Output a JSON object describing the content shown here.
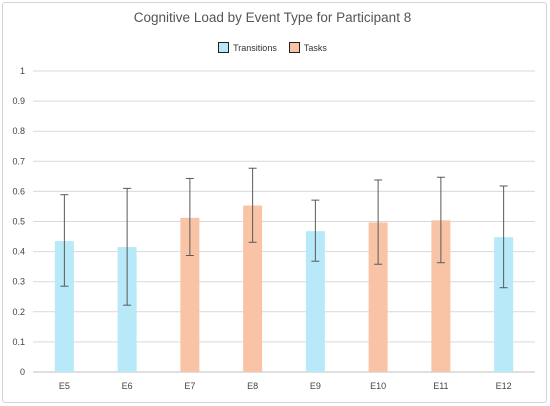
{
  "chart_data": {
    "type": "bar",
    "title": "Cognitive Load by Event Type for Participant 8",
    "xlabel": "",
    "ylabel": "",
    "ylim": [
      0,
      1
    ],
    "yticks": [
      "0",
      "0.1",
      "0.2",
      "0.3",
      "0.4",
      "0.5",
      "0.6",
      "0.7",
      "0.8",
      "0.9",
      "1"
    ],
    "grid": "horizontal",
    "legend_position": "top",
    "categories": [
      "E5",
      "E6",
      "E7",
      "E8",
      "E9",
      "E10",
      "E11",
      "E12"
    ],
    "values": [
      0.435,
      0.415,
      0.512,
      0.553,
      0.468,
      0.497,
      0.504,
      0.448
    ],
    "error_low": [
      0.285,
      0.222,
      0.387,
      0.431,
      0.368,
      0.358,
      0.363,
      0.28
    ],
    "error_high": [
      0.589,
      0.61,
      0.643,
      0.677,
      0.571,
      0.638,
      0.647,
      0.618
    ],
    "groups": [
      "Transitions",
      "Transitions",
      "Tasks",
      "Tasks",
      "Transitions",
      "Tasks",
      "Tasks",
      "Transitions"
    ],
    "series": [
      {
        "name": "Transitions",
        "color": "#b8e9f8"
      },
      {
        "name": "Tasks",
        "color": "#f9c4a6"
      }
    ]
  },
  "colors": {
    "grid": "#d9d9d9",
    "axis": "#bfbfbf",
    "error_bar": "#595959"
  }
}
